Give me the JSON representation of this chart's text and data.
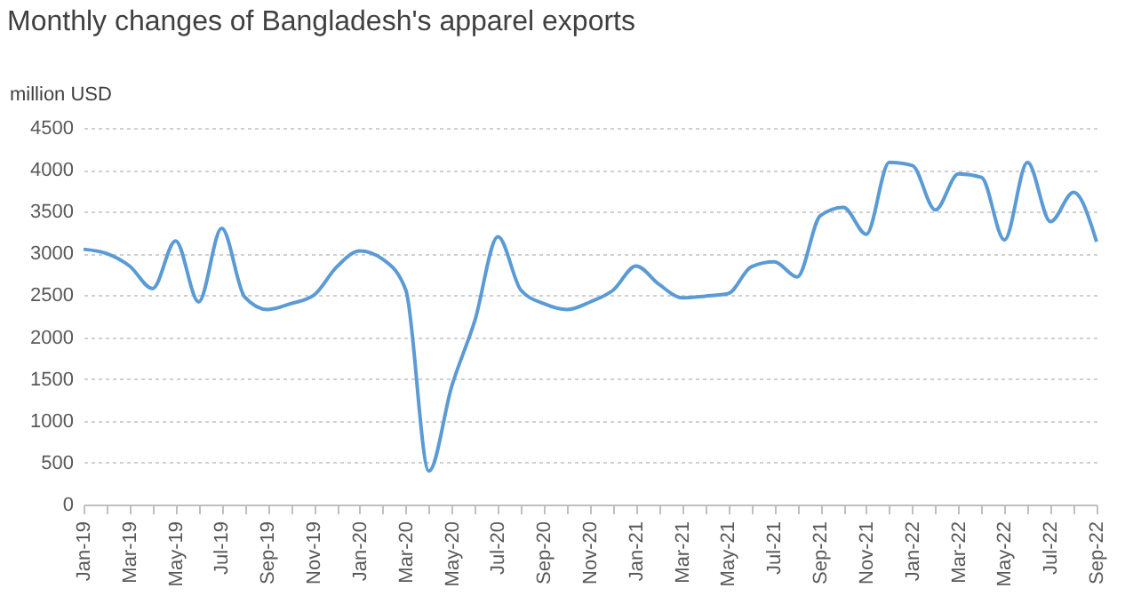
{
  "chart_data": {
    "type": "line",
    "title": "Monthly changes of Bangladesh's apparel exports",
    "ylabel": "million USD",
    "categories": [
      "Jan-19",
      null,
      "Mar-19",
      null,
      "May-19",
      null,
      "Jul-19",
      null,
      "Sep-19",
      null,
      "Nov-19",
      null,
      "Jan-20",
      null,
      "Mar-20",
      null,
      "May-20",
      null,
      "Jul-20",
      null,
      "Sep-20",
      null,
      "Nov-20",
      null,
      "Jan-21",
      null,
      "Mar-21",
      null,
      "May-21",
      null,
      "Jul-21",
      null,
      "Sep-21",
      null,
      "Nov-21",
      null,
      "Jan-22",
      null,
      "Mar-22",
      null,
      "May-22",
      null,
      "Jul-22",
      null,
      "Sep-22"
    ],
    "series": [
      {
        "color": "#5b9bd5",
        "values": [
          3050,
          3000,
          2850,
          2580,
          3150,
          2420,
          3300,
          2480,
          2330,
          2400,
          2500,
          2840,
          3030,
          2930,
          2560,
          400,
          1420,
          2200,
          3200,
          2560,
          2400,
          2330,
          2420,
          2560,
          2850,
          2630,
          2470,
          2490,
          2520,
          2840,
          2900,
          2720,
          3450,
          3550,
          3230,
          4090,
          4050,
          3520,
          3950,
          3910,
          3160,
          4090,
          3380,
          3730,
          3140
        ]
      }
    ],
    "ylim": [
      0,
      4500
    ],
    "yticks": [
      0,
      500,
      {
        "value": 1000,
        "label": "1000"
      },
      {
        "value": 1500,
        "label": "1500"
      },
      {
        "value": 2000,
        "label": "2000"
      },
      {
        "value": 2500,
        "label": "2500"
      },
      {
        "value": 3000,
        "label": "3000"
      },
      {
        "value": 3500,
        "label": "3500"
      },
      {
        "value": 4000,
        "label": "4000"
      },
      {
        "value": 4500,
        "label": "4500"
      }
    ],
    "grid": "y",
    "legend": false,
    "marker": "none",
    "line_style": "solid"
  }
}
